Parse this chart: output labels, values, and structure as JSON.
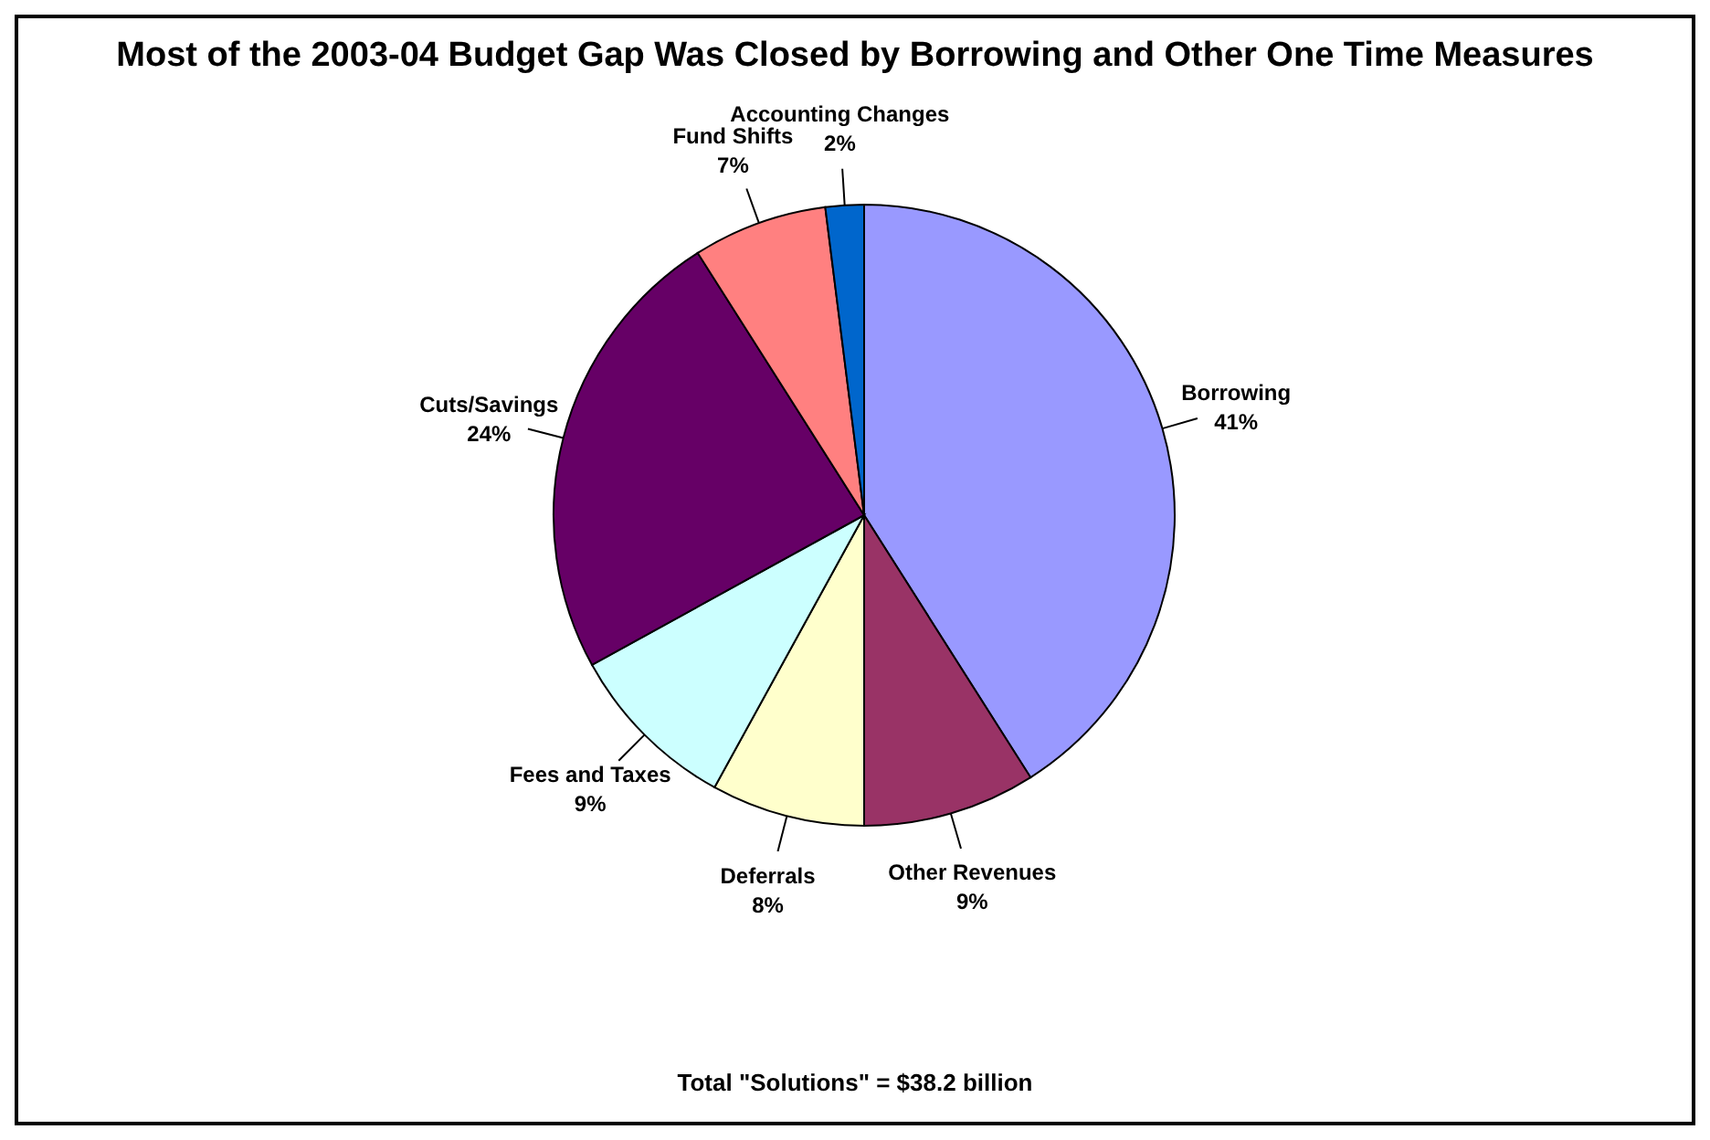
{
  "chart_data": {
    "type": "pie",
    "title": "Most of the 2003-04 Budget Gap Was Closed by Borrowing and Other One Time Measures",
    "categories": [
      "Borrowing",
      "Other Revenues",
      "Deferrals",
      "Fees and Taxes",
      "Cuts/Savings",
      "Fund Shifts",
      "Accounting Changes"
    ],
    "values": [
      41,
      9,
      8,
      9,
      24,
      7,
      2
    ],
    "value_labels": [
      "41%",
      "9%",
      "8%",
      "9%",
      "24%",
      "7%",
      "2%"
    ],
    "colors": [
      "#9999ff",
      "#993366",
      "#ffffcc",
      "#ccffff",
      "#660066",
      "#ff8080",
      "#0066cc"
    ],
    "legend": false,
    "annotations": [
      "Total \"Solutions\" = $38.2 billion"
    ]
  }
}
